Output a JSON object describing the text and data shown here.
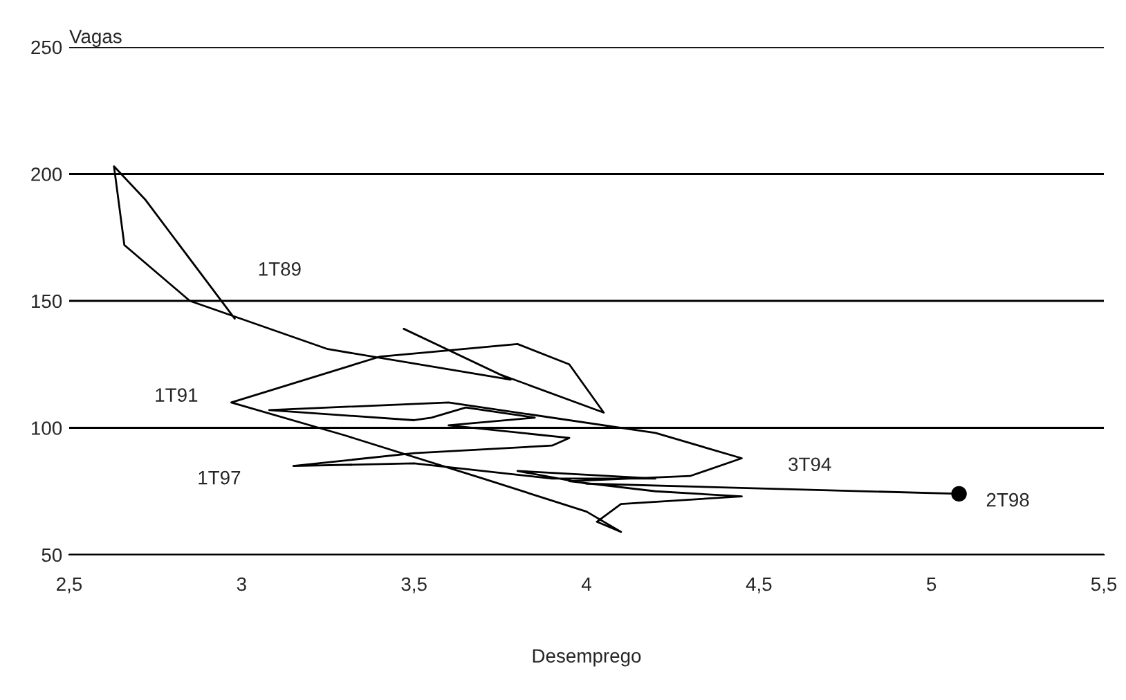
{
  "chart_data": {
    "type": "line",
    "xlabel": "Desemprego",
    "ylabel": "Vagas",
    "xlim": [
      2.5,
      5.5
    ],
    "xticks": [
      {
        "value": 2.5,
        "label": "2,5"
      },
      3,
      {
        "value": 3.5,
        "label": "3,5"
      },
      4,
      {
        "value": 4.5,
        "label": "4,5"
      },
      5,
      {
        "value": 5.5,
        "label": "5,5"
      }
    ],
    "ylim": [
      50,
      250
    ],
    "yticks": [
      50,
      100,
      150,
      200,
      250
    ],
    "grid": "y",
    "line_style": "solid",
    "series": [
      {
        "color": "#000000",
        "marker": "none",
        "x": [
          2.98,
          2.72,
          2.63,
          2.66,
          2.85,
          3.25,
          3.78,
          3.47,
          3.75,
          4.05,
          3.95,
          3.8,
          3.4,
          2.97,
          3.3,
          3.7,
          4.0,
          4.1,
          4.03,
          4.1,
          4.45,
          4.2,
          3.95,
          4.3,
          4.45,
          4.2,
          3.6,
          3.08,
          3.5,
          3.55,
          3.65,
          3.85,
          3.6,
          3.95,
          3.9,
          3.5,
          3.15,
          3.5,
          3.9,
          4.2,
          3.8,
          4.0,
          5.08
        ],
        "values": [
          143,
          190,
          203,
          172,
          150,
          131,
          119,
          139,
          121,
          106,
          125,
          133,
          128,
          110,
          97,
          80,
          67,
          59,
          63,
          70,
          73,
          75,
          79,
          81,
          88,
          98,
          110,
          107,
          103,
          104,
          108,
          104,
          101,
          96,
          93,
          90,
          85,
          86,
          80,
          80,
          83,
          78,
          74
        ]
      },
      {
        "type": "scatter",
        "color": "#000000",
        "marker": "circle",
        "x": [
          5.08
        ],
        "values": [
          74
        ]
      }
    ],
    "annotations": [
      {
        "text": "1T89",
        "x": 2.98,
        "y": 143
      },
      {
        "text": "1T91",
        "x": 2.97,
        "y": 110
      },
      {
        "text": "3T94",
        "x": 4.45,
        "y": 88
      },
      {
        "text": "1T97",
        "x": 3.15,
        "y": 85
      },
      {
        "text": "2T98",
        "x": 5.08,
        "y": 74
      }
    ]
  }
}
